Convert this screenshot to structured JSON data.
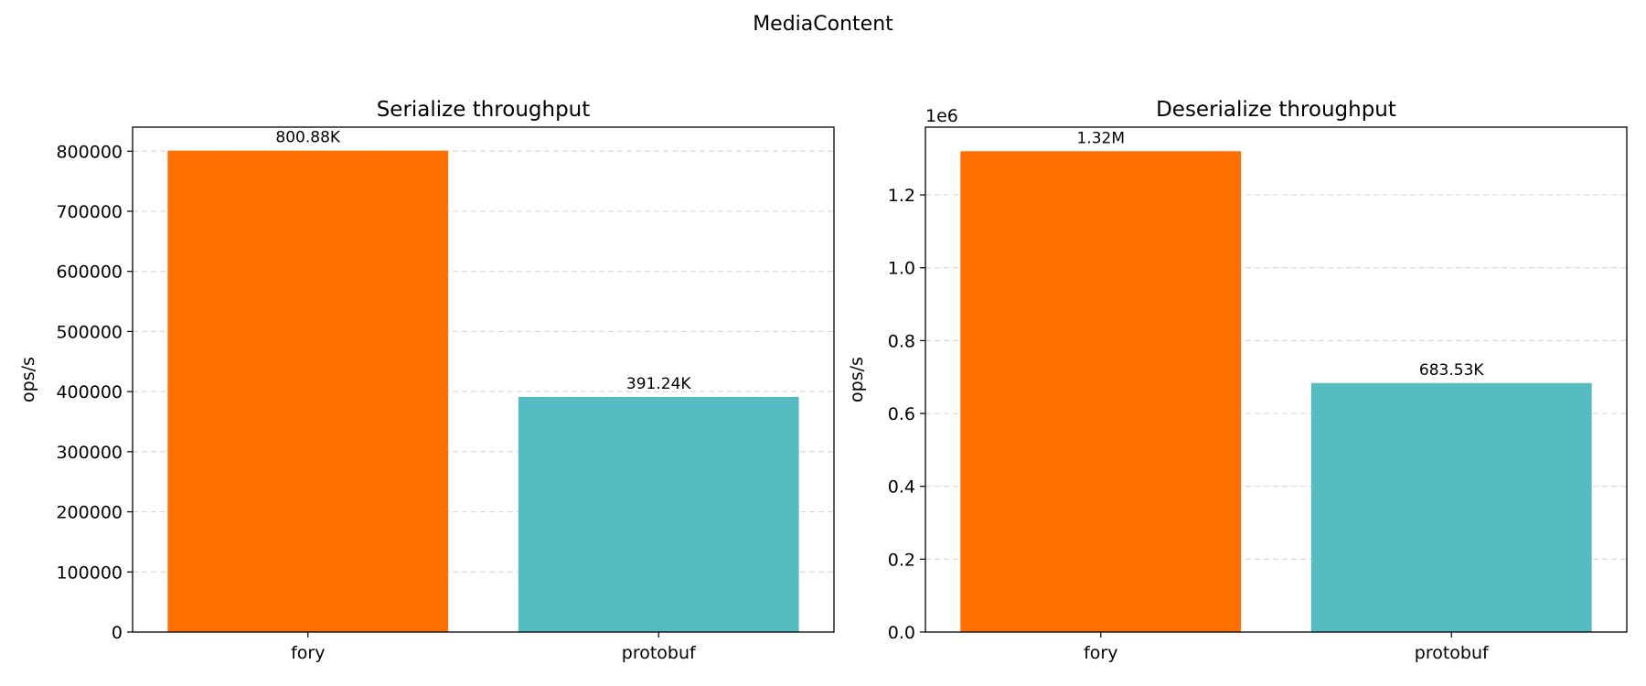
{
  "figure": {
    "suptitle": "MediaContent"
  },
  "colors": {
    "fory": "#FF6F00",
    "protobuf": "#55BCC2",
    "grid": "#d9d9d9"
  },
  "chart_data": [
    {
      "type": "bar",
      "title": "Serialize throughput",
      "xlabel": "",
      "ylabel": "ops/s",
      "categories": [
        "fory",
        "protobuf"
      ],
      "values": [
        800880,
        391240
      ],
      "value_labels": [
        "800.88K",
        "391.24K"
      ],
      "ylim": [
        0,
        840000
      ],
      "yticks": [
        0,
        100000,
        200000,
        300000,
        400000,
        500000,
        600000,
        700000,
        800000
      ],
      "ytick_labels": [
        "0",
        "100000",
        "200000",
        "300000",
        "400000",
        "500000",
        "600000",
        "700000",
        "800000"
      ],
      "offset_label": "",
      "grid": "y-dashed",
      "bar_colors": [
        "#FF6F00",
        "#55BCC2"
      ]
    },
    {
      "type": "bar",
      "title": "Deserialize throughput",
      "xlabel": "",
      "ylabel": "ops/s",
      "categories": [
        "fory",
        "protobuf"
      ],
      "values": [
        1320000,
        683530
      ],
      "value_labels": [
        "1.32M",
        "683.53K"
      ],
      "ylim": [
        0,
        1386000
      ],
      "yticks": [
        0,
        200000,
        400000,
        600000,
        800000,
        1000000,
        1200000
      ],
      "ytick_labels": [
        "0.0",
        "0.2",
        "0.4",
        "0.6",
        "0.8",
        "1.0",
        "1.2"
      ],
      "offset_label": "1e6",
      "grid": "y-dashed",
      "bar_colors": [
        "#FF6F00",
        "#55BCC2"
      ]
    }
  ]
}
